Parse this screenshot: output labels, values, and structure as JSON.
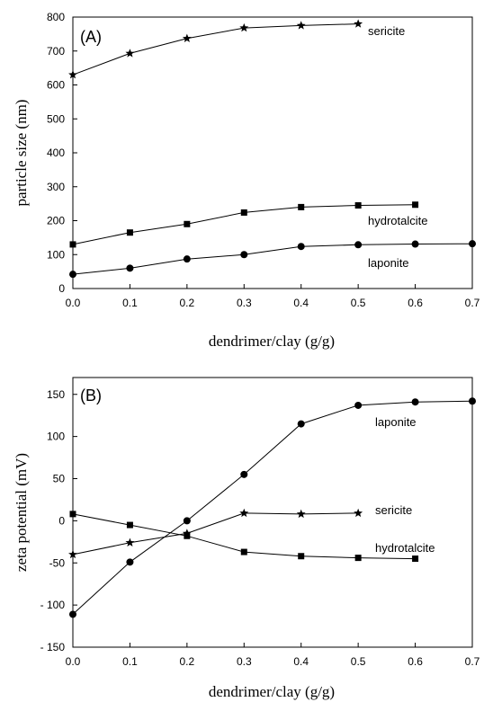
{
  "chart_data": [
    {
      "type": "line",
      "panel_label": "(A)",
      "xlabel": "dendrimer/clay (g/g)",
      "ylabel": "particle size (nm)",
      "xlim": [
        0,
        0.7
      ],
      "ylim": [
        0,
        800
      ],
      "xticks": [
        "0.0",
        "0.1",
        "0.2",
        "0.3",
        "0.4",
        "0.5",
        "0.6",
        "0.7"
      ],
      "yticks": [
        "0",
        "100",
        "200",
        "300",
        "400",
        "500",
        "600",
        "700",
        "800"
      ],
      "series": [
        {
          "name": "sericite",
          "marker": "star",
          "x": [
            0.0,
            0.1,
            0.2,
            0.3,
            0.4,
            0.5
          ],
          "y": [
            630,
            693,
            737,
            768,
            775,
            780
          ]
        },
        {
          "name": "hydrotalcite",
          "marker": "square",
          "x": [
            0.0,
            0.1,
            0.2,
            0.3,
            0.4,
            0.5,
            0.6
          ],
          "y": [
            130,
            165,
            190,
            224,
            240,
            245,
            247
          ]
        },
        {
          "name": "laponite",
          "marker": "circle",
          "x": [
            0.0,
            0.1,
            0.2,
            0.3,
            0.4,
            0.5,
            0.6,
            0.7
          ],
          "y": [
            42,
            60,
            87,
            100,
            124,
            129,
            131,
            132
          ]
        }
      ]
    },
    {
      "type": "line",
      "panel_label": "(B)",
      "xlabel": "dendrimer/clay (g/g)",
      "ylabel": "zeta potential (mV)",
      "xlim": [
        0,
        0.7
      ],
      "ylim": [
        -150,
        170
      ],
      "xticks": [
        "0.0",
        "0.1",
        "0.2",
        "0.3",
        "0.4",
        "0.5",
        "0.6",
        "0.7"
      ],
      "yticks": [
        "- 150",
        "- 100",
        "-50",
        "0",
        "50",
        "100",
        "150"
      ],
      "ytick_values": [
        -150,
        -100,
        -50,
        0,
        50,
        100,
        150
      ],
      "series": [
        {
          "name": "laponite",
          "marker": "circle",
          "x": [
            0.0,
            0.1,
            0.2,
            0.3,
            0.4,
            0.5,
            0.6,
            0.7
          ],
          "y": [
            -111,
            -49,
            0,
            55,
            115,
            137,
            141,
            142
          ]
        },
        {
          "name": "sericite",
          "marker": "star",
          "x": [
            0.0,
            0.1,
            0.2,
            0.3,
            0.4,
            0.5
          ],
          "y": [
            -40,
            -26,
            -15,
            9,
            8,
            9
          ]
        },
        {
          "name": "hydrotalcite",
          "marker": "square",
          "x": [
            0.0,
            0.1,
            0.2,
            0.3,
            0.4,
            0.5,
            0.6
          ],
          "y": [
            8,
            -5,
            -18,
            -37,
            -42,
            -44,
            -45
          ]
        }
      ]
    }
  ]
}
